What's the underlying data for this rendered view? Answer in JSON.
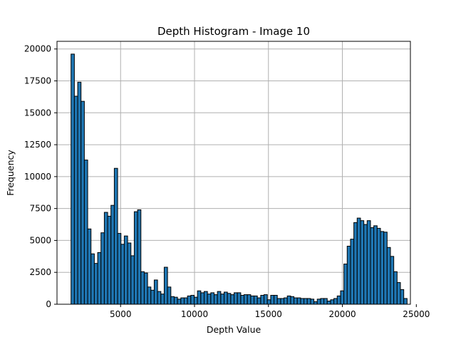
{
  "chart_data": {
    "type": "bar",
    "title": "Depth Histogram - Image 10",
    "xlabel": "Depth Value",
    "ylabel": "Frequency",
    "xlim": [
      700,
      24600
    ],
    "ylim": [
      0,
      20600
    ],
    "xticks": [
      5000,
      10000,
      15000,
      20000,
      25000
    ],
    "yticks": [
      0,
      2500,
      5000,
      7500,
      10000,
      12500,
      15000,
      17500,
      20000
    ],
    "grid": true,
    "bar_color": "#1f77b4",
    "edge_color": "#000000",
    "bin_start": 1650,
    "bin_width": 225,
    "values": [
      19600,
      16300,
      17400,
      15900,
      11300,
      5900,
      3950,
      3200,
      4050,
      5600,
      7200,
      6900,
      7750,
      10650,
      5550,
      4700,
      5350,
      4800,
      3800,
      7250,
      7400,
      2550,
      2450,
      1350,
      1100,
      1900,
      1000,
      800,
      2900,
      1350,
      600,
      550,
      400,
      500,
      500,
      650,
      700,
      550,
      1050,
      900,
      1000,
      800,
      900,
      750,
      1000,
      800,
      950,
      850,
      750,
      900,
      900,
      700,
      750,
      750,
      650,
      650,
      500,
      700,
      750,
      350,
      700,
      700,
      450,
      450,
      500,
      650,
      600,
      500,
      500,
      450,
      450,
      450,
      400,
      200,
      400,
      450,
      450,
      250,
      350,
      450,
      650,
      1050,
      3150,
      4550,
      5100,
      6400,
      6750,
      6550,
      6250,
      6550,
      6000,
      6150,
      5950,
      5700,
      5650,
      4450,
      3750,
      2550,
      1700,
      1150,
      450
    ]
  }
}
